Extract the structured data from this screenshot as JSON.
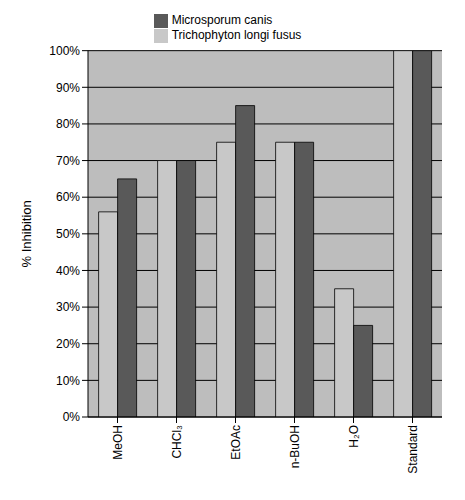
{
  "chart_data": {
    "type": "bar",
    "y_label": "% Inhibition",
    "categories": [
      "MeOH",
      "CHCl₃",
      "EtOAc",
      "n-BuOH",
      "H₂O",
      "Standard"
    ],
    "series": [
      {
        "name": "Trichophyton longi fusus",
        "color": "#c8c8c8",
        "values": [
          56,
          70,
          75,
          75,
          35,
          100
        ]
      },
      {
        "name": "Microsporum canis",
        "color": "#595959",
        "values": [
          65,
          70,
          85,
          75,
          25,
          100
        ]
      }
    ],
    "ylim": [
      0,
      100
    ],
    "yticks": [
      {
        "value": 0,
        "label": "0%"
      },
      {
        "value": 10,
        "label": "10%"
      },
      {
        "value": 20,
        "label": "20%"
      },
      {
        "value": 30,
        "label": "30%"
      },
      {
        "value": 40,
        "label": "40%"
      },
      {
        "value": 50,
        "label": "50%"
      },
      {
        "value": 60,
        "label": "60%"
      },
      {
        "value": 70,
        "label": "70%"
      },
      {
        "value": 80,
        "label": "80%"
      },
      {
        "value": 90,
        "label": "90%"
      },
      {
        "value": 100,
        "label": "100%"
      }
    ],
    "grid": true,
    "legend": "top"
  }
}
